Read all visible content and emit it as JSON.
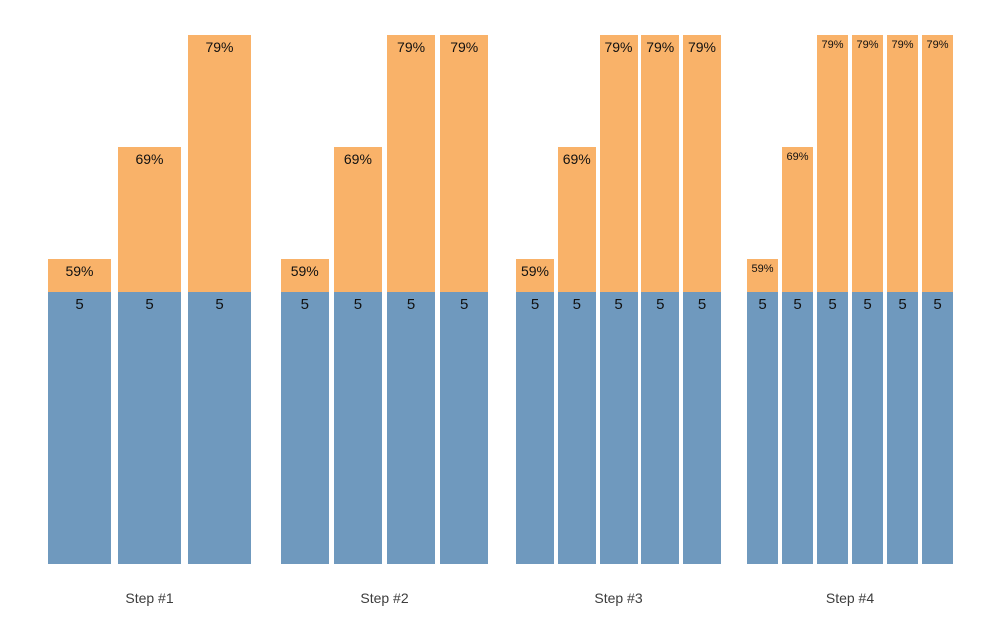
{
  "colors": {
    "base_fill": "#6F99BE",
    "top_fill": "#F9B269",
    "value_text": "#111111",
    "step_text": "#3d3d3d",
    "background": "#ffffff"
  },
  "chart_data": {
    "type": "bar",
    "subtype": "grouped-stacked-vertical",
    "title": "",
    "xlabel": "",
    "ylabel": "",
    "axes_visible": false,
    "grid": false,
    "legend": false,
    "categories": [
      "Step #1",
      "Step #2",
      "Step #3",
      "Step #4"
    ],
    "series_note": "Each bar = blue base segment (value 5) + orange top segment (percent label)",
    "groups": [
      {
        "label": "Step #1",
        "bars": [
          {
            "top_pct": 59,
            "top_label": "59%",
            "base_value": 5,
            "base_label": "5"
          },
          {
            "top_pct": 69,
            "top_label": "69%",
            "base_value": 5,
            "base_label": "5"
          },
          {
            "top_pct": 79,
            "top_label": "79%",
            "base_value": 5,
            "base_label": "5"
          }
        ]
      },
      {
        "label": "Step #2",
        "bars": [
          {
            "top_pct": 59,
            "top_label": "59%",
            "base_value": 5,
            "base_label": "5"
          },
          {
            "top_pct": 69,
            "top_label": "69%",
            "base_value": 5,
            "base_label": "5"
          },
          {
            "top_pct": 79,
            "top_label": "79%",
            "base_value": 5,
            "base_label": "5"
          },
          {
            "top_pct": 79,
            "top_label": "79%",
            "base_value": 5,
            "base_label": "5"
          }
        ]
      },
      {
        "label": "Step #3",
        "bars": [
          {
            "top_pct": 59,
            "top_label": "59%",
            "base_value": 5,
            "base_label": "5"
          },
          {
            "top_pct": 69,
            "top_label": "69%",
            "base_value": 5,
            "base_label": "5"
          },
          {
            "top_pct": 79,
            "top_label": "79%",
            "base_value": 5,
            "base_label": "5"
          },
          {
            "top_pct": 79,
            "top_label": "79%",
            "base_value": 5,
            "base_label": "5"
          },
          {
            "top_pct": 79,
            "top_label": "79%",
            "base_value": 5,
            "base_label": "5"
          }
        ]
      },
      {
        "label": "Step #4",
        "bars": [
          {
            "top_pct": 59,
            "top_label": "59%",
            "base_value": 5,
            "base_label": "5"
          },
          {
            "top_pct": 69,
            "top_label": "69%",
            "base_value": 5,
            "base_label": "5"
          },
          {
            "top_pct": 79,
            "top_label": "79%",
            "base_value": 5,
            "base_label": "5"
          },
          {
            "top_pct": 79,
            "top_label": "79%",
            "base_value": 5,
            "base_label": "5"
          },
          {
            "top_pct": 79,
            "top_label": "79%",
            "base_value": 5,
            "base_label": "5"
          },
          {
            "top_pct": 79,
            "top_label": "79%",
            "base_value": 5,
            "base_label": "5"
          }
        ]
      }
    ]
  }
}
